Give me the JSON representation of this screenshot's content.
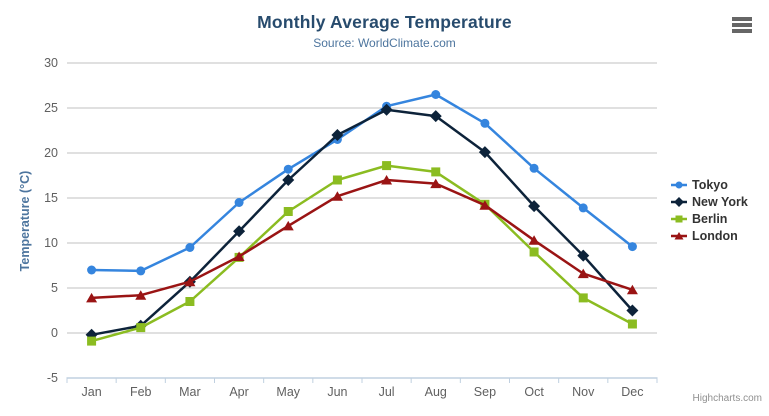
{
  "chart_data": {
    "type": "line",
    "title": "Monthly Average Temperature",
    "subtitle": "Source: WorldClimate.com",
    "xlabel": "",
    "ylabel": "Temperature (°C)",
    "categories": [
      "Jan",
      "Feb",
      "Mar",
      "Apr",
      "May",
      "Jun",
      "Jul",
      "Aug",
      "Sep",
      "Oct",
      "Nov",
      "Dec"
    ],
    "ylim": [
      -5,
      30
    ],
    "ytick_interval": 5,
    "grid": true,
    "legend_position": "right",
    "series": [
      {
        "name": "Tokyo",
        "color": "#3585de",
        "marker": "circle",
        "values": [
          7.0,
          6.9,
          9.5,
          14.5,
          18.2,
          21.5,
          25.2,
          26.5,
          23.3,
          18.3,
          13.9,
          9.6
        ]
      },
      {
        "name": "New York",
        "color": "#0d233a",
        "marker": "diamond",
        "values": [
          -0.2,
          0.8,
          5.7,
          11.3,
          17.0,
          22.0,
          24.8,
          24.1,
          20.1,
          14.1,
          8.6,
          2.5
        ]
      },
      {
        "name": "Berlin",
        "color": "#8bbc21",
        "marker": "square",
        "values": [
          -0.9,
          0.6,
          3.5,
          8.4,
          13.5,
          17.0,
          18.6,
          17.9,
          14.3,
          9.0,
          3.9,
          1.0
        ]
      },
      {
        "name": "London",
        "color": "#9a1414",
        "marker": "triangle",
        "values": [
          3.9,
          4.2,
          5.7,
          8.5,
          11.9,
          15.2,
          17.0,
          16.6,
          14.2,
          10.3,
          6.6,
          4.8
        ]
      }
    ]
  },
  "styles": {
    "title_color": "#274b6d",
    "subtitle_color": "#4d759e",
    "axis_title_color": "#4d759e",
    "axis_label_color": "#606060",
    "gridline_color": "#c0c0c0",
    "axis_line_color": "#c0d0e0",
    "legend_text_color": "#333333",
    "credits_color": "#909090",
    "menu_icon_color": "#666666",
    "background": "#ffffff"
  },
  "credits": {
    "label": "Highcharts.com"
  },
  "menu": {
    "icon": "hamburger-icon"
  }
}
